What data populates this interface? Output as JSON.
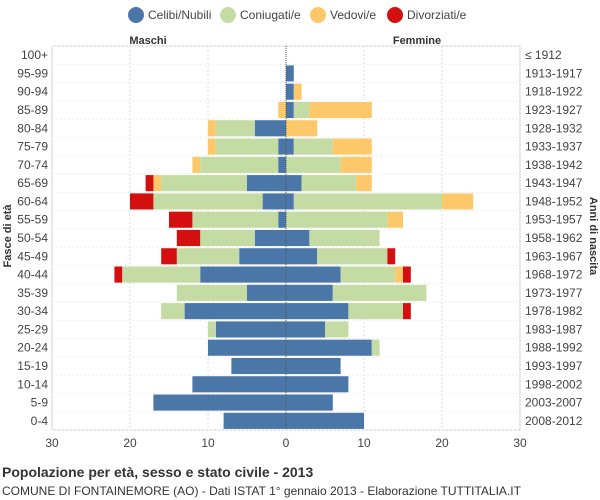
{
  "chart_data": {
    "type": "bar",
    "orientation": "horizontal-pyramid",
    "title": "Popolazione per età, sesso e stato civile - 2013",
    "subtitle": "COMUNE DI FONTAINEMORE (AO) - Dati ISTAT 1° gennaio 2013 - Elaborazione TUTTITALIA.IT",
    "ylabel_left": "Fasce di età",
    "ylabel_right": "Anni di nascita",
    "side_labels": {
      "left": "Maschi",
      "right": "Femmine"
    },
    "legend_position": "top",
    "xlim": [
      -30,
      30
    ],
    "x_ticks": [
      -30,
      -20,
      -10,
      0,
      10,
      20,
      30
    ],
    "x_tick_labels": [
      "30",
      "20",
      "10",
      "0",
      "10",
      "20",
      "30"
    ],
    "grid": true,
    "series": [
      {
        "name": "Celibi/Nubili",
        "color": "#4a76a8"
      },
      {
        "name": "Coniugati/e",
        "color": "#c5dba4"
      },
      {
        "name": "Vedovi/e",
        "color": "#fcc86a"
      },
      {
        "name": "Divorziati/e",
        "color": "#d40f0f"
      }
    ],
    "age_groups": [
      "100+",
      "95-99",
      "90-94",
      "85-89",
      "80-84",
      "75-79",
      "70-74",
      "65-69",
      "60-64",
      "55-59",
      "50-54",
      "45-49",
      "40-44",
      "35-39",
      "30-34",
      "25-29",
      "20-24",
      "15-19",
      "10-14",
      "5-9",
      "0-4"
    ],
    "birth_years": [
      "≤ 1912",
      "1913-1917",
      "1918-1922",
      "1923-1927",
      "1928-1932",
      "1933-1937",
      "1938-1942",
      "1943-1947",
      "1948-1952",
      "1953-1957",
      "1958-1962",
      "1963-1967",
      "1968-1972",
      "1973-1977",
      "1978-1982",
      "1983-1987",
      "1988-1992",
      "1993-1997",
      "1998-2002",
      "2003-2007",
      "2008-2012"
    ],
    "males": [
      [
        0,
        0,
        0,
        0
      ],
      [
        0,
        0,
        0,
        0
      ],
      [
        0,
        0,
        0,
        0
      ],
      [
        0,
        0,
        1,
        0
      ],
      [
        4,
        5,
        1,
        0
      ],
      [
        1,
        8,
        1,
        0
      ],
      [
        1,
        10,
        1,
        0
      ],
      [
        5,
        11,
        1,
        1
      ],
      [
        3,
        14,
        0,
        3
      ],
      [
        1,
        11,
        0,
        3
      ],
      [
        4,
        7,
        0,
        3
      ],
      [
        6,
        8,
        0,
        2
      ],
      [
        11,
        10,
        0,
        1
      ],
      [
        5,
        9,
        0,
        0
      ],
      [
        13,
        3,
        0,
        0
      ],
      [
        9,
        1,
        0,
        0
      ],
      [
        10,
        0,
        0,
        0
      ],
      [
        7,
        0,
        0,
        0
      ],
      [
        12,
        0,
        0,
        0
      ],
      [
        17,
        0,
        0,
        0
      ],
      [
        8,
        0,
        0,
        0
      ]
    ],
    "females": [
      [
        0,
        0,
        0,
        0
      ],
      [
        1,
        0,
        0,
        0
      ],
      [
        1,
        0,
        1,
        0
      ],
      [
        1,
        2,
        8,
        0
      ],
      [
        0,
        0,
        4,
        0
      ],
      [
        1,
        5,
        5,
        0
      ],
      [
        0,
        7,
        4,
        0
      ],
      [
        2,
        7,
        2,
        0
      ],
      [
        1,
        19,
        4,
        0
      ],
      [
        0,
        13,
        2,
        0
      ],
      [
        3,
        9,
        0,
        0
      ],
      [
        4,
        9,
        0,
        1
      ],
      [
        7,
        7,
        1,
        1
      ],
      [
        6,
        12,
        0,
        0
      ],
      [
        8,
        7,
        0,
        1
      ],
      [
        5,
        3,
        0,
        0
      ],
      [
        11,
        1,
        0,
        0
      ],
      [
        7,
        0,
        0,
        0
      ],
      [
        8,
        0,
        0,
        0
      ],
      [
        6,
        0,
        0,
        0
      ],
      [
        10,
        0,
        0,
        0
      ]
    ]
  }
}
